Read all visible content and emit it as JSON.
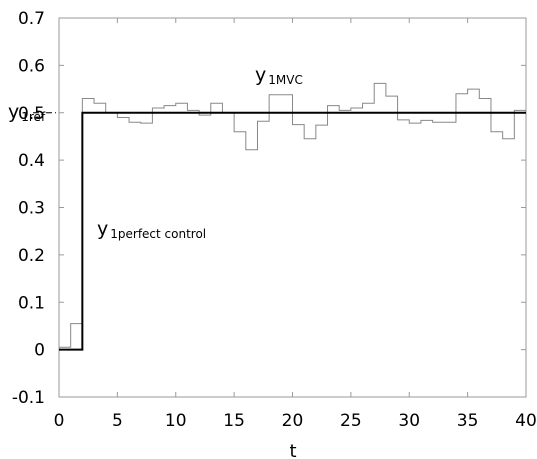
{
  "chart_data": {
    "type": "line",
    "title": "",
    "xlabel": "t",
    "ylabel": "",
    "xlim": [
      0,
      40
    ],
    "ylim": [
      -0.1,
      0.7
    ],
    "x_ticks": [
      "0",
      "5",
      "10",
      "15",
      "20",
      "25",
      "30",
      "35",
      "40"
    ],
    "y_ticks": [
      "0.7",
      "0.6",
      "0.5",
      "0.4",
      "0.3",
      "0.2",
      "0.1",
      "0",
      "-0.1"
    ],
    "grid": false,
    "legend": "none",
    "reference": {
      "label_main": "y",
      "label_sub": "1ref",
      "value": 0.5,
      "style": "dash-dot"
    },
    "series": [
      {
        "label_main": "y",
        "label_sub": "1MVC",
        "style": "step",
        "color": "#888888",
        "x": [
          0,
          1,
          2,
          3,
          4,
          5,
          6,
          7,
          8,
          9,
          10,
          11,
          12,
          13,
          14,
          15,
          16,
          17,
          18,
          19,
          20,
          21,
          22,
          23,
          24,
          25,
          26,
          27,
          28,
          29,
          30,
          31,
          32,
          33,
          34,
          35,
          36,
          37,
          38,
          39,
          40
        ],
        "y": [
          0.005,
          0.055,
          0.53,
          0.52,
          0.5,
          0.49,
          0.48,
          0.478,
          0.51,
          0.515,
          0.52,
          0.505,
          0.495,
          0.52,
          0.5,
          0.46,
          0.422,
          0.482,
          0.538,
          0.538,
          0.475,
          0.445,
          0.474,
          0.515,
          0.505,
          0.51,
          0.52,
          0.562,
          0.535,
          0.485,
          0.478,
          0.484,
          0.48,
          0.48,
          0.54,
          0.55,
          0.53,
          0.46,
          0.445,
          0.505,
          0.505
        ]
      },
      {
        "label_main": "y",
        "label_sub": "1perfect control",
        "style": "step",
        "color": "#000000",
        "x": [
          0,
          1,
          2,
          3,
          4,
          5,
          6,
          7,
          8,
          9,
          10,
          11,
          12,
          13,
          14,
          15,
          16,
          17,
          18,
          19,
          20,
          21,
          22,
          23,
          24,
          25,
          26,
          27,
          28,
          29,
          30,
          31,
          32,
          33,
          34,
          35,
          36,
          37,
          38,
          39,
          40
        ],
        "y": [
          0,
          0,
          0.5,
          0.5,
          0.5,
          0.5,
          0.5,
          0.5,
          0.5,
          0.5,
          0.5,
          0.5,
          0.5,
          0.5,
          0.5,
          0.5,
          0.5,
          0.5,
          0.5,
          0.5,
          0.5,
          0.5,
          0.5,
          0.5,
          0.5,
          0.5,
          0.5,
          0.5,
          0.5,
          0.5,
          0.5,
          0.5,
          0.5,
          0.5,
          0.5,
          0.5,
          0.5,
          0.5,
          0.5,
          0.5,
          0.5
        ]
      }
    ]
  }
}
